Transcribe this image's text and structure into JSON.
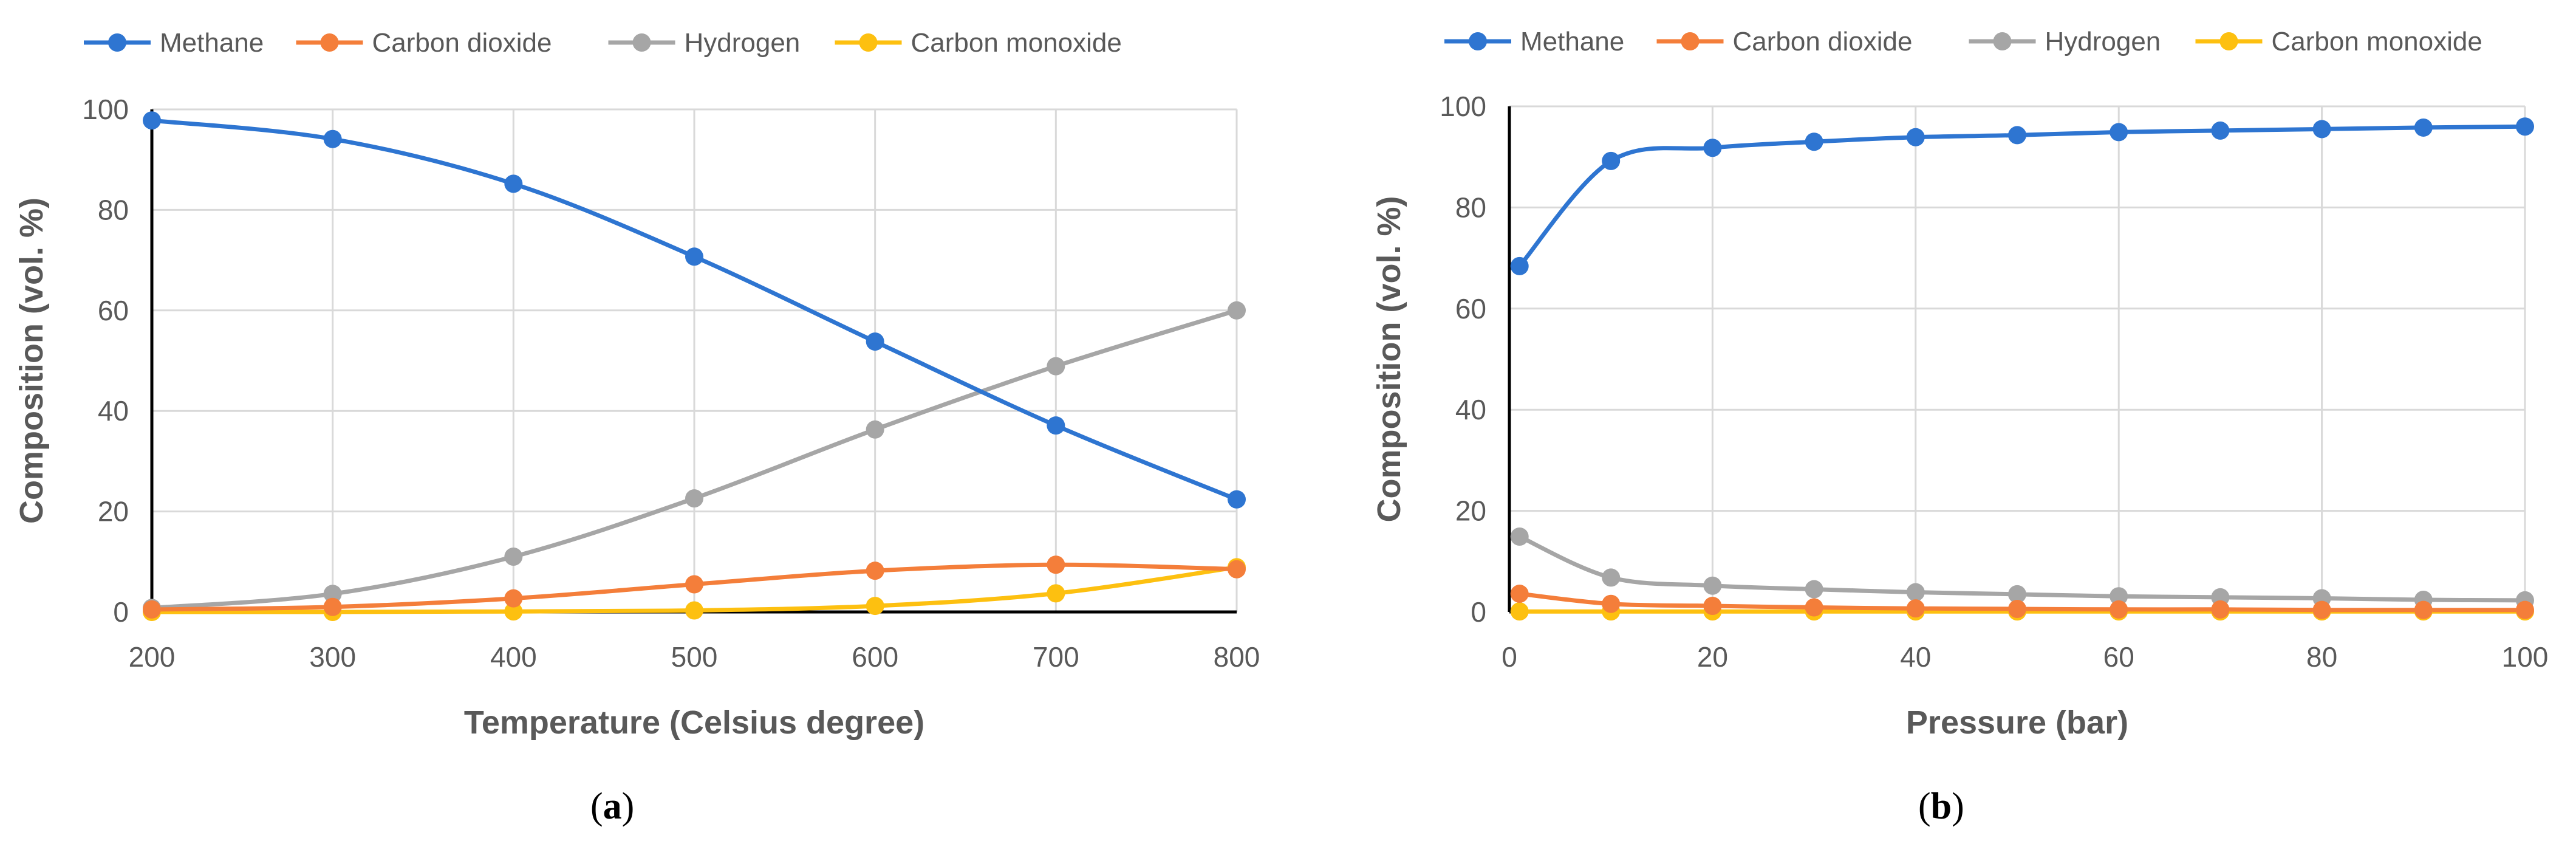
{
  "colors": {
    "Methane": "#2E75D1",
    "Carbon dioxide": "#F47E3A",
    "Hydrogen": "#A6A6A6",
    "Carbon monoxide": "#FDC010",
    "grid": "#D9D9D9",
    "axis": "#000000",
    "text": "#595959"
  },
  "chart_data": [
    {
      "type": "line",
      "panel_label": "a",
      "xlabel": "Temperature (Celsius degree)",
      "ylabel": "Composition (vol. %)",
      "xlim": [
        200,
        800
      ],
      "ylim": [
        0,
        100
      ],
      "xticks": [
        200,
        300,
        400,
        500,
        600,
        700,
        800
      ],
      "yticks": [
        0,
        20,
        40,
        60,
        80,
        100
      ],
      "grid": true,
      "legend": "top",
      "x": [
        200,
        300,
        400,
        500,
        600,
        700,
        800
      ],
      "series": [
        {
          "name": "Methane",
          "values": [
            97.8,
            94.1,
            85.2,
            70.7,
            53.8,
            37.1,
            22.4
          ]
        },
        {
          "name": "Carbon dioxide",
          "values": [
            0.5,
            1.0,
            2.7,
            5.5,
            8.2,
            9.4,
            8.5
          ]
        },
        {
          "name": "Hydrogen",
          "values": [
            0.8,
            3.6,
            11.0,
            22.6,
            36.3,
            48.9,
            60.0
          ]
        },
        {
          "name": "Carbon monoxide",
          "values": [
            0.0,
            0.0,
            0.1,
            0.3,
            1.2,
            3.7,
            8.9
          ]
        }
      ]
    },
    {
      "type": "line",
      "panel_label": "b",
      "xlabel": "Pressure (bar)",
      "ylabel": "Composition (vol. %)",
      "xlim": [
        0,
        100
      ],
      "ylim": [
        0,
        100
      ],
      "xticks": [
        0,
        20,
        40,
        60,
        80,
        100
      ],
      "yticks": [
        0,
        20,
        40,
        60,
        80,
        100
      ],
      "grid": true,
      "legend": "top",
      "x": [
        1,
        10,
        20,
        30,
        40,
        50,
        60,
        70,
        80,
        90,
        100
      ],
      "series": [
        {
          "name": "Methane",
          "values": [
            68.4,
            89.2,
            91.8,
            93.0,
            93.9,
            94.3,
            94.9,
            95.2,
            95.5,
            95.8,
            96.0
          ]
        },
        {
          "name": "Carbon dioxide",
          "values": [
            3.6,
            1.6,
            1.2,
            0.9,
            0.7,
            0.6,
            0.5,
            0.5,
            0.4,
            0.4,
            0.4
          ]
        },
        {
          "name": "Hydrogen",
          "values": [
            14.9,
            6.8,
            5.2,
            4.5,
            3.9,
            3.5,
            3.1,
            2.9,
            2.7,
            2.4,
            2.3
          ]
        },
        {
          "name": "Carbon monoxide",
          "values": [
            0.1,
            0.1,
            0.1,
            0.1,
            0.1,
            0.1,
            0.1,
            0.1,
            0.1,
            0.1,
            0.1
          ]
        }
      ]
    }
  ]
}
